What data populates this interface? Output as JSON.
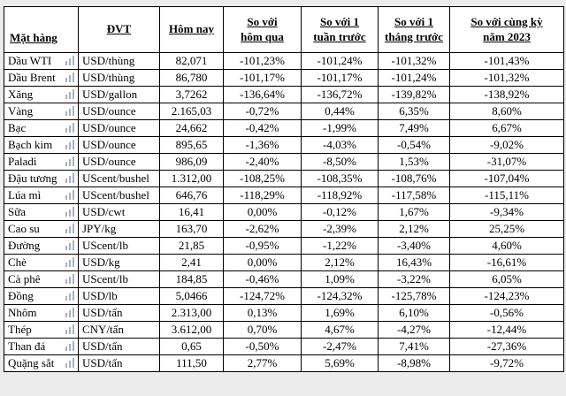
{
  "colors": {
    "table_border": "#000000",
    "table_background": "#ffffff",
    "page_background": "#ececec",
    "text": "#000000",
    "row_icon": "#a4b1c2"
  },
  "icons": {
    "row_icon_name": "chart-icon"
  },
  "chart_data": {
    "type": "table",
    "title": "",
    "columns": [
      "Mặt hàng",
      "ĐVT",
      "Hôm nay",
      "So với\nhôm qua",
      "So với 1\ntuần trước",
      "So với 1\ntháng trước",
      "So với cùng kỳ\nnăm 2023"
    ],
    "rows": [
      [
        "Dầu WTI",
        "USD/thùng",
        "82,071",
        "-101,23%",
        "-101,24%",
        "-101,32%",
        "-101,43%"
      ],
      [
        "Dầu Brent",
        "USD/thùng",
        "86,780",
        "-101,17%",
        "-101,17%",
        "-101,24%",
        "-101,32%"
      ],
      [
        "Xăng",
        "USD/gallon",
        "3,7262",
        "-136,64%",
        "-136,72%",
        "-139,82%",
        "-138,92%"
      ],
      [
        "Vàng",
        "USD/ounce",
        "2.165,03",
        "-0,72%",
        "0,44%",
        "6,35%",
        "8,60%"
      ],
      [
        "Bạc",
        "USD/ounce",
        "24,662",
        "-0,42%",
        "-1,99%",
        "7,49%",
        "6,67%"
      ],
      [
        "Bạch kim",
        "USD/ounce",
        "895,65",
        "-1,36%",
        "-4,03%",
        "-0,54%",
        "-9,02%"
      ],
      [
        "Paladi",
        "USD/ounce",
        "986,09",
        "-2,40%",
        "-8,50%",
        "1,53%",
        "-31,07%"
      ],
      [
        "Đậu tương",
        "UScent/bushel",
        "1.312,00",
        "-108,25%",
        "-108,35%",
        "-108,76%",
        "-107,04%"
      ],
      [
        "Lúa mì",
        "UScent/bushel",
        "646,76",
        "-118,29%",
        "-118,92%",
        "-117,58%",
        "-115,11%"
      ],
      [
        "Sữa",
        "USD/cwt",
        "16,41",
        "0,00%",
        "-0,12%",
        "1,67%",
        "-9,34%"
      ],
      [
        "Cao su",
        "JPY/kg",
        "163,70",
        "-2,62%",
        "-2,39%",
        "2,12%",
        "25,25%"
      ],
      [
        "Đường",
        "UScent/lb",
        "21,85",
        "-0,95%",
        "-1,22%",
        "-3,40%",
        "4,60%"
      ],
      [
        "Chè",
        "USD/kg",
        "2,41",
        "0,00%",
        "2,12%",
        "16,43%",
        "-16,61%"
      ],
      [
        "Cà phê",
        "UScent/lb",
        "184,85",
        "-0,46%",
        "1,09%",
        "-3,22%",
        "6,05%"
      ],
      [
        "Đồng",
        "USD/lb",
        "5,0466",
        "-124,72%",
        "-124,32%",
        "-125,78%",
        "-124,23%"
      ],
      [
        "Nhôm",
        "USD/tấn",
        "2.313,00",
        "0,13%",
        "1,69%",
        "6,10%",
        "-0,56%"
      ],
      [
        "Thép",
        "CNY/tấn",
        "3.612,00",
        "0,70%",
        "4,67%",
        "-4,27%",
        "-12,44%"
      ],
      [
        "Than đá",
        "USD/tấn",
        "0,65",
        "-0,50%",
        "-2,47%",
        "7,41%",
        "-27,36%"
      ],
      [
        "Quặng sắt",
        "USD/tấn",
        "111,50",
        "2,77%",
        "5,69%",
        "-8,98%",
        "-9,72%"
      ]
    ]
  }
}
